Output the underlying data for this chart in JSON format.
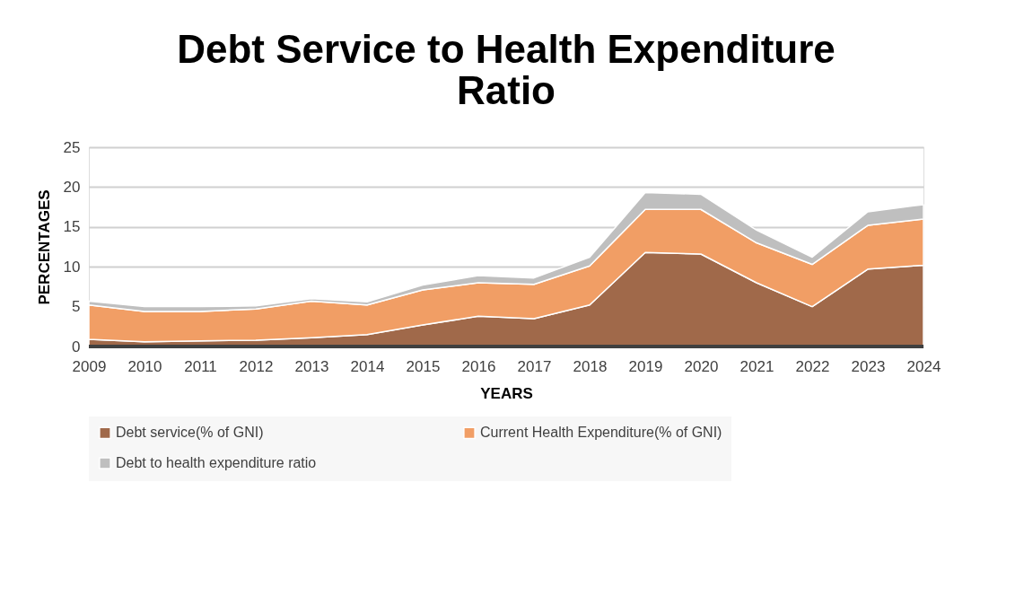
{
  "chart_data": {
    "type": "area",
    "stacked": true,
    "title": [
      "Debt Service to Health Expenditure",
      "Ratio"
    ],
    "xlabel": "YEARS",
    "ylabel": "PERCENTAGES",
    "categories": [
      "2009",
      "2010",
      "2011",
      "2012",
      "2013",
      "2014",
      "2015",
      "2016",
      "2017",
      "2018",
      "2019",
      "2020",
      "2021",
      "2022",
      "2023",
      "2024"
    ],
    "series": [
      {
        "name": "Debt service(% of GNI)",
        "color": "#a0694a",
        "values": [
          0.9,
          0.6,
          0.7,
          0.8,
          1.1,
          1.5,
          2.7,
          3.8,
          3.5,
          5.2,
          11.8,
          11.6,
          8.0,
          5.0,
          9.7,
          10.2
        ]
      },
      {
        "name": "Current Health Expenditure(% of GNI)",
        "color": "#f19e65",
        "values": [
          4.3,
          3.8,
          3.7,
          3.9,
          4.6,
          3.7,
          4.4,
          4.2,
          4.3,
          4.9,
          5.4,
          5.6,
          5.0,
          5.3,
          5.5,
          5.8
        ]
      },
      {
        "name": "Debt to health expenditure ratio",
        "color": "#bfbfbf",
        "values": [
          0.5,
          0.6,
          0.6,
          0.4,
          0.3,
          0.4,
          0.6,
          0.9,
          0.8,
          1.1,
          2.1,
          1.9,
          1.6,
          0.9,
          1.7,
          1.8
        ]
      }
    ],
    "ylim": [
      0,
      25
    ],
    "yticks": [
      0,
      5,
      10,
      15,
      20,
      25
    ],
    "grid": "y",
    "legend": "bottom"
  }
}
